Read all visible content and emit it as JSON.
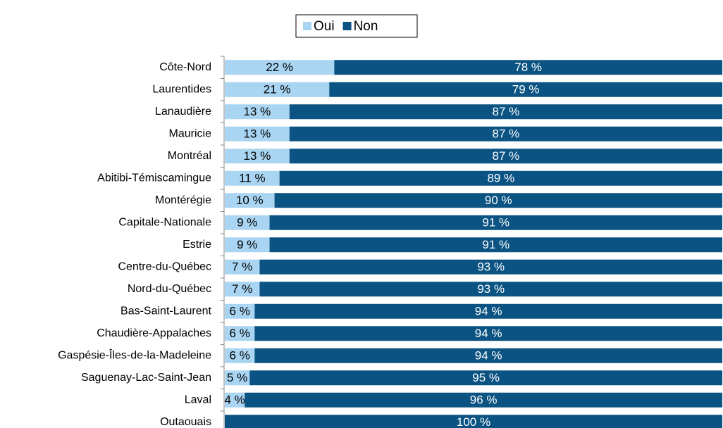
{
  "chart_data": {
    "type": "stacked-bar-horizontal",
    "categories": [
      "Côte-Nord",
      "Laurentides",
      "Lanaudière",
      "Mauricie",
      "Montréal",
      "Abitibi-Témiscamingue",
      "Montérégie",
      "Capitale-Nationale",
      "Estrie",
      "Centre-du-Québec",
      "Nord-du-Québec",
      "Bas-Saint-Laurent",
      "Chaudière-Appalaches",
      "Gaspésie-Îles-de-la-Madeleine",
      "Saguenay-Lac-Saint-Jean",
      "Laval",
      "Outaouais"
    ],
    "series": [
      {
        "name": "Oui",
        "color": "#a9d5f2",
        "values": [
          22,
          21,
          13,
          13,
          13,
          11,
          10,
          9,
          9,
          7,
          7,
          6,
          6,
          6,
          5,
          4,
          0
        ],
        "value_labels": [
          "22 %",
          "21 %",
          "13 %",
          "13 %",
          "13 %",
          "11 %",
          "10 %",
          "9 %",
          "9 %",
          "7 %",
          "7 %",
          "6 %",
          "6 %",
          "6 %",
          "5 %",
          "4 %",
          null
        ]
      },
      {
        "name": "Non",
        "color": "#0b5382",
        "values": [
          78,
          79,
          87,
          87,
          87,
          89,
          90,
          91,
          91,
          93,
          93,
          94,
          94,
          94,
          95,
          96,
          100
        ],
        "value_labels": [
          "78 %",
          "79 %",
          "87 %",
          "87 %",
          "87 %",
          "89 %",
          "90 %",
          "91 %",
          "91 %",
          "93 %",
          "93 %",
          "94 %",
          "94 %",
          "94 %",
          "95 %",
          "96 %",
          "100 %"
        ]
      }
    ],
    "legend": "top"
  }
}
